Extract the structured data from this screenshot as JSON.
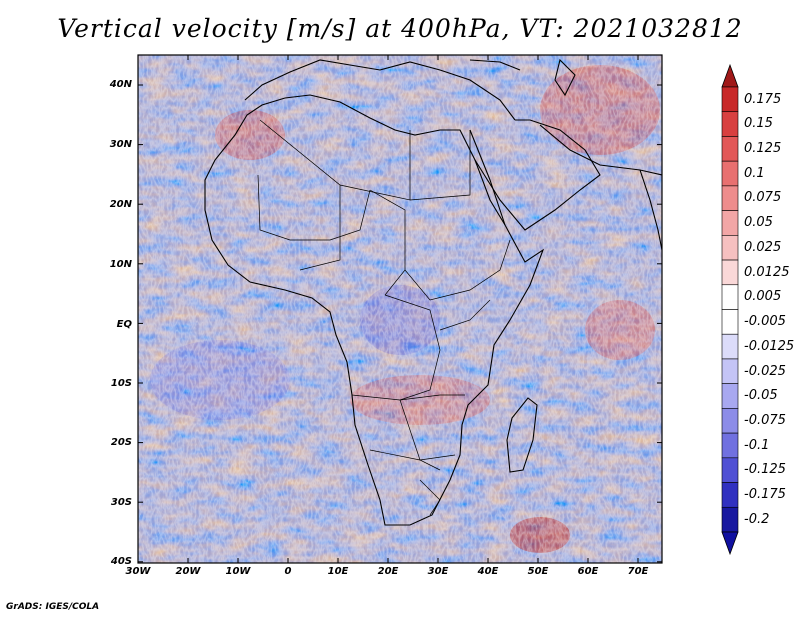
{
  "title": "Vertical velocity [m/s] at 400hPa, VT: 2021032812",
  "footer": "GrADS: IGES/COLA",
  "map": {
    "lat_labels": [
      "40N",
      "30N",
      "20N",
      "10N",
      "EQ",
      "10S",
      "20S",
      "30S",
      "40S"
    ],
    "lon_labels": [
      "30W",
      "20W",
      "10W",
      "0",
      "10E",
      "20E",
      "30E",
      "40E",
      "50E",
      "60E",
      "70E"
    ]
  },
  "colorbar": {
    "labels": [
      "0.175",
      "0.15",
      "0.125",
      "0.1",
      "0.075",
      "0.05",
      "0.025",
      "0.0125",
      "0.005",
      "-0.005",
      "-0.0125",
      "-0.025",
      "-0.05",
      "-0.075",
      "-0.1",
      "-0.125",
      "-0.175",
      "-0.2"
    ],
    "colors": [
      "#c82828",
      "#d84040",
      "#e25858",
      "#e87070",
      "#ee8c8c",
      "#f2a6a6",
      "#f6c0c0",
      "#fad8d8",
      "#ffffff",
      "#ffffff",
      "#dcdcfa",
      "#c4c4f6",
      "#a8a8f0",
      "#8c8ce8",
      "#7070e0",
      "#5050d4",
      "#3030c0",
      "#1818a0"
    ]
  }
}
